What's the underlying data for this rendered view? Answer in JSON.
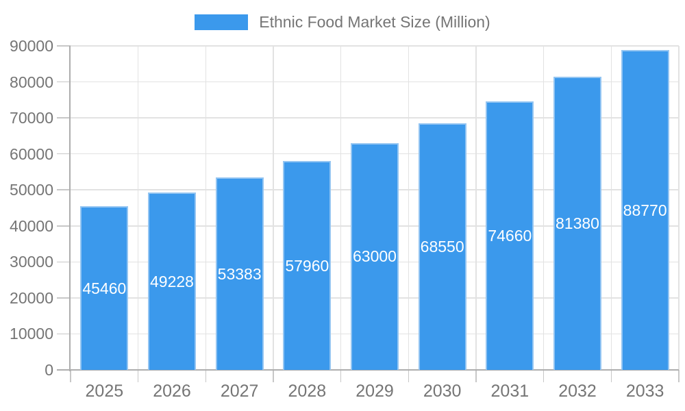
{
  "chart_data": {
    "type": "bar",
    "title": "Ethnic Food Market Size (Million)",
    "categories": [
      "2025",
      "2026",
      "2027",
      "2028",
      "2029",
      "2030",
      "2031",
      "2032",
      "2033"
    ],
    "series": [
      {
        "name": "Ethnic Food Market Size (Million)",
        "values": [
          45460,
          49228,
          53383,
          57960,
          63000,
          68550,
          74660,
          81380,
          88770
        ]
      }
    ],
    "bar_value_labels": [
      "45460",
      "49228",
      "53383",
      "57960",
      "63000",
      "68550",
      "74660",
      "81380",
      "88770"
    ],
    "xlabel": "",
    "ylabel": "",
    "ylim": [
      0,
      90000
    ],
    "ytick_step": 10000,
    "ytick_labels": [
      "0",
      "10000",
      "20000",
      "30000",
      "40000",
      "50000",
      "60000",
      "70000",
      "80000",
      "90000"
    ],
    "grid": true,
    "legend_position": "top-center",
    "value_label_position": "bar-center",
    "colors": {
      "bar_fill": "#3B99EC",
      "bar_border": "#94C5F2",
      "value_label": "#FFFFFF",
      "axis_line": "#ADADAD",
      "tick_line": "#C7C7C7",
      "gridline": "#E2E2E2",
      "tick_text": "#757575",
      "legend_text": "#757575",
      "background": "#FFFFFF"
    }
  }
}
